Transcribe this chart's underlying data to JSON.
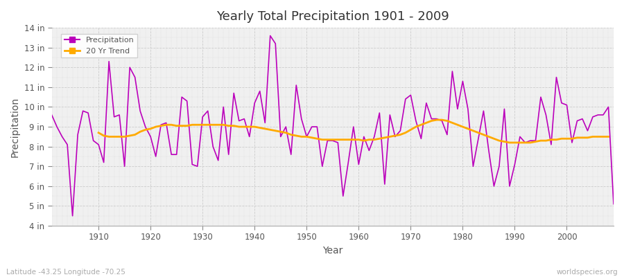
{
  "title": "Yearly Total Precipitation 1901 - 2009",
  "xlabel": "Year",
  "ylabel": "Precipitation",
  "fig_bg_color": "#ffffff",
  "plot_bg_color": "#f0f0f0",
  "precip_color": "#bb00bb",
  "trend_color": "#ffaa00",
  "footer_left": "Latitude -43.25 Longitude -70.25",
  "footer_right": "worldspecies.org",
  "ylim": [
    4,
    14
  ],
  "years": [
    1901,
    1902,
    1903,
    1904,
    1905,
    1906,
    1907,
    1908,
    1909,
    1910,
    1911,
    1912,
    1913,
    1914,
    1915,
    1916,
    1917,
    1918,
    1919,
    1920,
    1921,
    1922,
    1923,
    1924,
    1925,
    1926,
    1927,
    1928,
    1929,
    1930,
    1931,
    1932,
    1933,
    1934,
    1935,
    1936,
    1937,
    1938,
    1939,
    1940,
    1941,
    1942,
    1943,
    1944,
    1945,
    1946,
    1947,
    1948,
    1949,
    1950,
    1951,
    1952,
    1953,
    1954,
    1955,
    1956,
    1957,
    1958,
    1959,
    1960,
    1961,
    1962,
    1963,
    1964,
    1965,
    1966,
    1967,
    1968,
    1969,
    1970,
    1971,
    1972,
    1973,
    1974,
    1975,
    1976,
    1977,
    1978,
    1979,
    1980,
    1981,
    1982,
    1983,
    1984,
    1985,
    1986,
    1987,
    1988,
    1989,
    1990,
    1991,
    1992,
    1993,
    1994,
    1995,
    1996,
    1997,
    1998,
    1999,
    2000,
    2001,
    2002,
    2003,
    2004,
    2005,
    2006,
    2007,
    2008,
    2009
  ],
  "precip": [
    9.6,
    9.0,
    8.5,
    8.1,
    4.5,
    8.6,
    9.8,
    9.7,
    8.3,
    8.1,
    7.2,
    12.3,
    9.5,
    9.6,
    7.0,
    12.0,
    11.5,
    9.8,
    9.0,
    8.5,
    7.5,
    9.1,
    9.2,
    7.6,
    7.6,
    10.5,
    10.3,
    7.1,
    7.0,
    9.5,
    9.8,
    8.0,
    7.3,
    10.0,
    7.6,
    10.7,
    9.3,
    9.4,
    8.5,
    10.2,
    10.8,
    9.2,
    13.6,
    13.2,
    8.5,
    9.0,
    7.6,
    11.1,
    9.4,
    8.5,
    9.0,
    9.0,
    7.0,
    8.3,
    8.3,
    8.2,
    5.5,
    7.2,
    9.0,
    7.1,
    8.5,
    7.8,
    8.5,
    9.7,
    6.1,
    9.6,
    8.5,
    8.8,
    10.4,
    10.6,
    9.3,
    8.4,
    10.2,
    9.4,
    9.4,
    9.3,
    8.6,
    11.8,
    9.9,
    11.3,
    9.9,
    7.0,
    8.4,
    9.8,
    7.8,
    6.0,
    7.0,
    9.9,
    6.0,
    7.1,
    8.5,
    8.2,
    8.3,
    8.3,
    10.5,
    9.6,
    8.1,
    11.5,
    10.2,
    10.1,
    8.2,
    9.3,
    9.4,
    8.8,
    9.5,
    9.6,
    9.6,
    10.0,
    5.1
  ],
  "trend": [
    null,
    null,
    null,
    null,
    null,
    null,
    null,
    null,
    null,
    8.7,
    8.55,
    8.5,
    8.5,
    8.5,
    8.5,
    8.55,
    8.6,
    8.75,
    8.85,
    8.9,
    9.0,
    9.05,
    9.1,
    9.1,
    9.05,
    9.05,
    9.05,
    9.1,
    9.1,
    9.1,
    9.1,
    9.1,
    9.1,
    9.1,
    9.05,
    9.05,
    9.0,
    9.0,
    9.0,
    9.0,
    8.95,
    8.9,
    8.85,
    8.8,
    8.75,
    8.7,
    8.6,
    8.55,
    8.5,
    8.5,
    8.45,
    8.4,
    8.35,
    8.35,
    8.35,
    8.35,
    8.35,
    8.35,
    8.35,
    8.35,
    8.3,
    8.35,
    8.35,
    8.4,
    8.45,
    8.5,
    8.55,
    8.6,
    8.7,
    8.85,
    9.0,
    9.1,
    9.2,
    9.3,
    9.35,
    9.35,
    9.3,
    9.2,
    9.1,
    9.0,
    8.9,
    8.8,
    8.7,
    8.6,
    8.5,
    8.4,
    8.3,
    8.25,
    8.2,
    8.2,
    8.2,
    8.2,
    8.2,
    8.25,
    8.3,
    8.3,
    8.35,
    8.35,
    8.4,
    8.4,
    8.4,
    8.45,
    8.45,
    8.45,
    8.5,
    8.5,
    8.5,
    8.5,
    null
  ]
}
